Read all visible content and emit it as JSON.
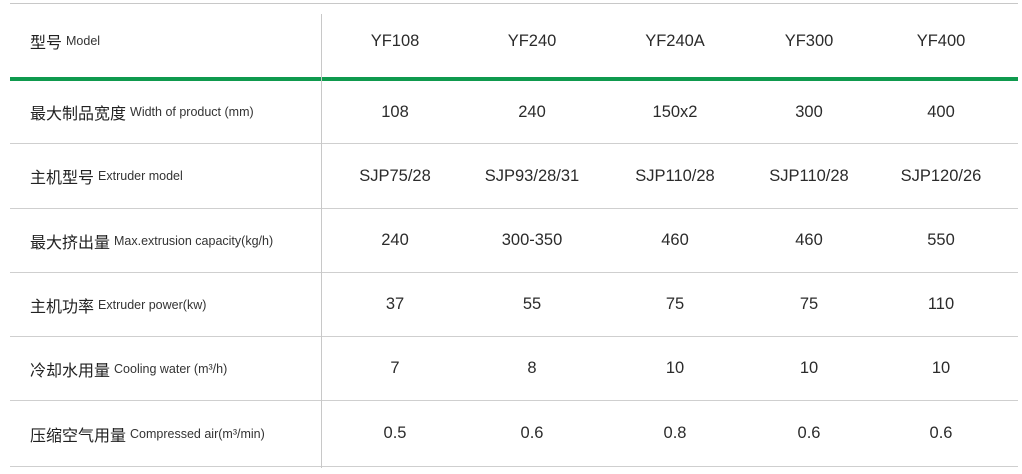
{
  "header": {
    "label_cn": "型号",
    "label_en": "Model",
    "models": [
      "YF108",
      "YF240",
      "YF240A",
      "YF300",
      "YF400"
    ]
  },
  "rows": [
    {
      "label_cn": "最大制品宽度",
      "label_en": "Width of product (mm)",
      "values": [
        "108",
        "240",
        "150x2",
        "300",
        "400"
      ]
    },
    {
      "label_cn": "主机型号",
      "label_en": "Extruder model",
      "values": [
        "SJP75/28",
        "SJP93/28/31",
        "SJP110/28",
        "SJP110/28",
        "SJP120/26"
      ]
    },
    {
      "label_cn": "最大挤出量",
      "label_en": "Max.extrusion capacity(kg/h)",
      "values": [
        "240",
        "300-350",
        "460",
        "460",
        "550"
      ]
    },
    {
      "label_cn": "主机功率",
      "label_en": "Extruder power(kw)",
      "values": [
        "37",
        "55",
        "75",
        "75",
        "110"
      ]
    },
    {
      "label_cn": "冷却水用量",
      "label_en": "Cooling water (m³/h)",
      "values": [
        "7",
        "8",
        "10",
        "10",
        "10"
      ]
    },
    {
      "label_cn": "压缩空气用量",
      "label_en": "Compressed air(m³/min)",
      "values": [
        "0.5",
        "0.6",
        "0.8",
        "0.6",
        "0.6"
      ]
    }
  ],
  "colors": {
    "accent_green": "#0f9a4e",
    "divider_gray": "#c8c8c8",
    "text": "#2b2b2b"
  }
}
